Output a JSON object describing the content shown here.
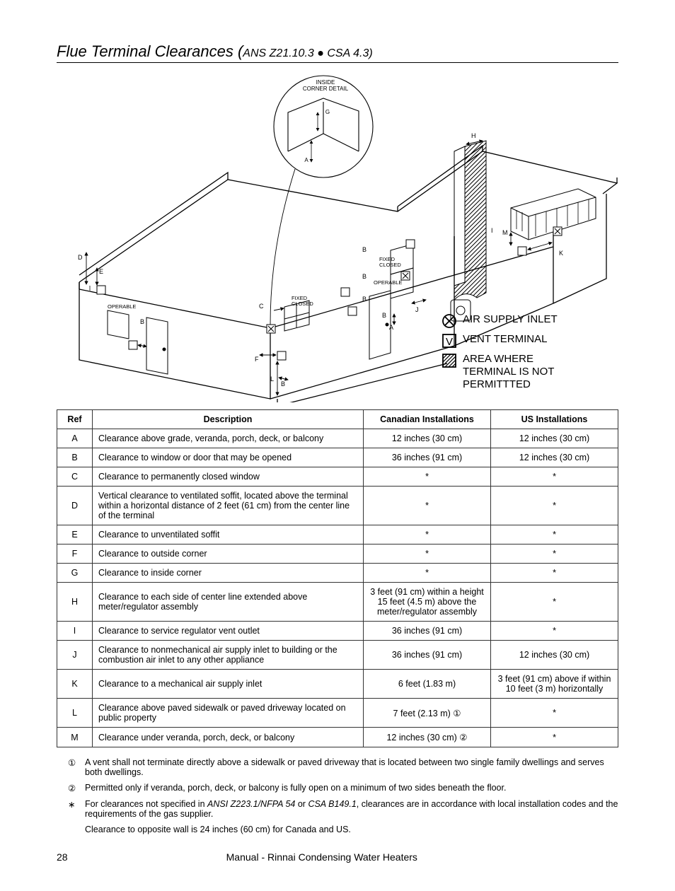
{
  "title_main": "Flue Terminal Clearances (",
  "title_sub": "ANS Z21.10.3 ● CSA 4.3)",
  "diagram_labels": {
    "inside_corner": "INSIDE\nCORNER DETAIL",
    "fixed_closed": "FIXED\nCLOSED",
    "operable": "OPERABLE",
    "refs": [
      "A",
      "B",
      "C",
      "D",
      "E",
      "F",
      "G",
      "H",
      "I",
      "J",
      "K",
      "L",
      "M"
    ],
    "v": "V"
  },
  "legend": {
    "air_supply": "AIR SUPPLY INLET",
    "vent_terminal": "VENT TERMINAL",
    "no_permit": "AREA WHERE TERMINAL IS NOT PERMITTTED"
  },
  "table": {
    "headers": [
      "Ref",
      "Description",
      "Canadian Installations",
      "US Installations"
    ],
    "rows": [
      {
        "ref": "A",
        "desc": "Clearance above grade, veranda, porch, deck, or balcony",
        "ca": "12 inches (30 cm)",
        "us": "12 inches (30 cm)"
      },
      {
        "ref": "B",
        "desc": "Clearance to window or door that may be opened",
        "ca": "36 inches (91 cm)",
        "us": "12 inches (30 cm)"
      },
      {
        "ref": "C",
        "desc": "Clearance to permanently closed window",
        "ca": "*",
        "us": "*"
      },
      {
        "ref": "D",
        "desc": "Vertical clearance to ventilated soffit, located above the terminal within a horizontal distance of 2 feet (61 cm) from the center line of the terminal",
        "ca": "*",
        "us": "*"
      },
      {
        "ref": "E",
        "desc": "Clearance to unventilated soffit",
        "ca": "*",
        "us": "*"
      },
      {
        "ref": "F",
        "desc": "Clearance to outside corner",
        "ca": "*",
        "us": "*"
      },
      {
        "ref": "G",
        "desc": "Clearance to inside corner",
        "ca": "*",
        "us": "*"
      },
      {
        "ref": "H",
        "desc": "Clearance to each side of center line extended above meter/regulator assembly",
        "ca": "3 feet (91 cm) within a height 15 feet (4.5 m) above the meter/regulator assembly",
        "us": "*"
      },
      {
        "ref": "I",
        "desc": "Clearance to service regulator vent outlet",
        "ca": "36 inches (91 cm)",
        "us": "*"
      },
      {
        "ref": "J",
        "desc": "Clearance to nonmechanical air supply inlet to building or the combustion air inlet to any other appliance",
        "ca": "36 inches (91 cm)",
        "us": "12 inches (30 cm)"
      },
      {
        "ref": "K",
        "desc": "Clearance to a mechanical air supply inlet",
        "ca": "6 feet (1.83 m)",
        "us": "3 feet (91 cm) above if within 10 feet (3 m) horizontally"
      },
      {
        "ref": "L",
        "desc": "Clearance above paved sidewalk or paved driveway located on public property",
        "ca": "7 feet (2.13 m) ①",
        "us": "*"
      },
      {
        "ref": "M",
        "desc": "Clearance under veranda, porch, deck, or balcony",
        "ca": "12 inches (30 cm) ②",
        "us": "*"
      }
    ]
  },
  "notes": [
    {
      "mark": "①",
      "text": "A vent shall not terminate directly above a sidewalk or paved driveway that is located between two single family dwellings and serves both dwellings."
    },
    {
      "mark": "②",
      "text": "Permitted only if veranda, porch, deck, or balcony is fully open on a minimum of two sides beneath the floor."
    },
    {
      "mark": "∗",
      "text": "For clearances not specified in <i>ANSI Z223.1/NFPA 54</i> or <i>CSA B149.1</i>, clearances are in accordance with local installation codes and the requirements of the gas supplier."
    },
    {
      "mark": "",
      "text": "Clearance to opposite wall is 24 inches (60 cm) for Canada and US."
    }
  ],
  "footer": {
    "page": "28",
    "title": "Manual - Rinnai Condensing Water Heaters"
  }
}
